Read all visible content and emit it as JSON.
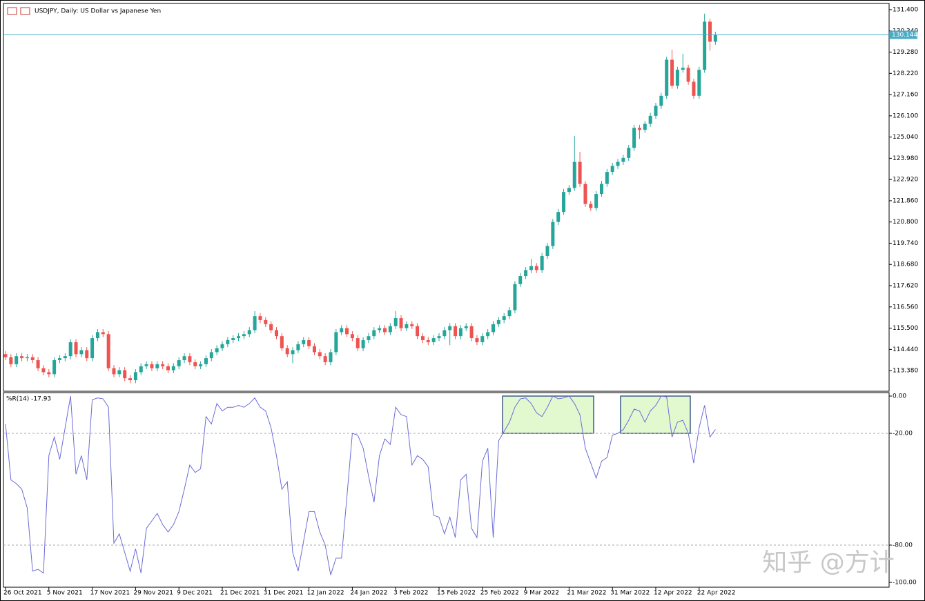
{
  "chart_data": {
    "type": "candlestick",
    "title": "USDJPY, Daily: US Dollar vs Japanese Yen",
    "up_color": "#26a69a",
    "down_color": "#ef5350",
    "categories": [
      "26 Oct 2021",
      null,
      null,
      null,
      null,
      null,
      null,
      null,
      "5 Nov 2021",
      null,
      null,
      null,
      null,
      null,
      null,
      null,
      "17 Nov 2021",
      null,
      null,
      null,
      null,
      null,
      null,
      null,
      "29 Nov 2021",
      null,
      null,
      null,
      null,
      null,
      null,
      null,
      "9 Dec 2021",
      null,
      null,
      null,
      null,
      null,
      null,
      null,
      "21 Dec 2021",
      null,
      null,
      null,
      null,
      null,
      null,
      null,
      "31 Dec 2021",
      null,
      null,
      null,
      null,
      null,
      null,
      null,
      "12 Jan 2022",
      null,
      null,
      null,
      null,
      null,
      null,
      null,
      "24 Jan 2022",
      null,
      null,
      null,
      null,
      null,
      null,
      null,
      "3 Feb 2022",
      null,
      null,
      null,
      null,
      null,
      null,
      null,
      "15 Feb 2022",
      null,
      null,
      null,
      null,
      null,
      null,
      null,
      "25 Feb 2022",
      null,
      null,
      null,
      null,
      null,
      null,
      null,
      "9 Mar 2022",
      null,
      null,
      null,
      null,
      null,
      null,
      null,
      "21 Mar 2022",
      null,
      null,
      null,
      null,
      null,
      null,
      null,
      "31 Mar 2022",
      null,
      null,
      null,
      null,
      null,
      null,
      null,
      "12 Apr 2022",
      null,
      null,
      null,
      null,
      null,
      null,
      null,
      "22 Apr 2022",
      null,
      null,
      null
    ],
    "ohlc": [
      [
        114.2,
        114.35,
        113.9,
        114.05
      ],
      [
        114.05,
        114.2,
        113.55,
        113.7
      ],
      [
        113.7,
        114.25,
        113.55,
        114.1
      ],
      [
        114.1,
        114.25,
        113.85,
        114.0
      ],
      [
        114.0,
        114.2,
        113.85,
        114.05
      ],
      [
        114.05,
        114.2,
        113.75,
        113.9
      ],
      [
        113.9,
        114.05,
        113.35,
        113.5
      ],
      [
        113.5,
        113.65,
        113.15,
        113.3
      ],
      [
        113.3,
        113.45,
        113.05,
        113.2
      ],
      [
        113.2,
        114.05,
        113.05,
        113.9
      ],
      [
        113.9,
        114.15,
        113.75,
        114.0
      ],
      [
        114.0,
        114.25,
        113.85,
        114.1
      ],
      [
        114.1,
        114.95,
        113.95,
        114.8
      ],
      [
        114.8,
        114.95,
        114.05,
        114.2
      ],
      [
        114.2,
        114.55,
        114.05,
        114.4
      ],
      [
        114.4,
        114.55,
        113.85,
        114.0
      ],
      [
        114.0,
        115.15,
        113.85,
        115.0
      ],
      [
        115.0,
        115.45,
        114.85,
        115.3
      ],
      [
        115.3,
        115.45,
        115.05,
        115.2
      ],
      [
        115.2,
        115.35,
        113.35,
        113.5
      ],
      [
        113.5,
        113.65,
        113.05,
        113.2
      ],
      [
        113.2,
        113.55,
        113.05,
        113.4
      ],
      [
        113.4,
        113.55,
        112.85,
        113.0
      ],
      [
        113.0,
        113.15,
        112.75,
        112.9
      ],
      [
        112.9,
        113.45,
        112.75,
        113.3
      ],
      [
        113.3,
        113.75,
        113.15,
        113.6
      ],
      [
        113.6,
        113.85,
        113.45,
        113.7
      ],
      [
        113.7,
        113.85,
        113.35,
        113.5
      ],
      [
        113.5,
        113.85,
        113.35,
        113.7
      ],
      [
        113.7,
        113.85,
        113.45,
        113.6
      ],
      [
        113.6,
        113.75,
        113.25,
        113.4
      ],
      [
        113.4,
        113.75,
        113.25,
        113.6
      ],
      [
        113.6,
        114.05,
        113.45,
        113.9
      ],
      [
        113.9,
        114.25,
        113.75,
        114.1
      ],
      [
        114.1,
        114.25,
        113.65,
        113.8
      ],
      [
        113.8,
        113.95,
        113.45,
        113.6
      ],
      [
        113.6,
        113.85,
        113.45,
        113.7
      ],
      [
        113.7,
        114.15,
        113.55,
        114.0
      ],
      [
        114.0,
        114.45,
        113.85,
        114.3
      ],
      [
        114.3,
        114.65,
        114.15,
        114.5
      ],
      [
        114.5,
        114.85,
        114.35,
        114.7
      ],
      [
        114.7,
        115.05,
        114.55,
        114.9
      ],
      [
        114.9,
        115.15,
        114.75,
        115.0
      ],
      [
        115.0,
        115.25,
        114.85,
        115.1
      ],
      [
        115.1,
        115.35,
        114.95,
        115.2
      ],
      [
        115.2,
        115.55,
        115.05,
        115.4
      ],
      [
        115.4,
        116.35,
        115.25,
        116.1
      ],
      [
        116.1,
        116.25,
        115.75,
        115.9
      ],
      [
        115.9,
        116.05,
        115.55,
        115.7
      ],
      [
        115.7,
        115.85,
        115.25,
        115.4
      ],
      [
        115.4,
        115.55,
        114.95,
        115.1
      ],
      [
        115.1,
        115.25,
        114.35,
        114.5
      ],
      [
        114.5,
        114.65,
        114.05,
        114.2
      ],
      [
        114.2,
        114.55,
        113.75,
        114.4
      ],
      [
        114.4,
        114.85,
        114.25,
        114.7
      ],
      [
        114.7,
        115.05,
        114.55,
        114.9
      ],
      [
        114.9,
        115.05,
        114.45,
        114.6
      ],
      [
        114.6,
        114.75,
        114.15,
        114.3
      ],
      [
        114.3,
        114.45,
        113.95,
        114.1
      ],
      [
        114.1,
        114.25,
        113.65,
        113.8
      ],
      [
        113.8,
        114.45,
        113.65,
        114.3
      ],
      [
        114.3,
        115.45,
        114.15,
        115.3
      ],
      [
        115.3,
        115.65,
        115.15,
        115.5
      ],
      [
        115.5,
        115.65,
        115.05,
        115.2
      ],
      [
        115.2,
        115.35,
        114.85,
        115.0
      ],
      [
        115.0,
        115.15,
        114.35,
        114.5
      ],
      [
        114.5,
        115.05,
        114.35,
        114.9
      ],
      [
        114.9,
        115.25,
        114.75,
        115.1
      ],
      [
        115.1,
        115.55,
        114.95,
        115.4
      ],
      [
        115.4,
        115.65,
        115.25,
        115.5
      ],
      [
        115.5,
        115.65,
        115.15,
        115.3
      ],
      [
        115.3,
        115.75,
        115.15,
        115.6
      ],
      [
        115.6,
        116.35,
        115.45,
        116.0
      ],
      [
        116.0,
        116.15,
        115.35,
        115.5
      ],
      [
        115.5,
        115.85,
        115.35,
        115.7
      ],
      [
        115.7,
        115.85,
        115.45,
        115.6
      ],
      [
        115.6,
        115.75,
        114.95,
        115.1
      ],
      [
        115.1,
        115.25,
        114.75,
        114.9
      ],
      [
        114.9,
        115.05,
        114.65,
        114.8
      ],
      [
        114.8,
        115.15,
        114.65,
        115.0
      ],
      [
        115.0,
        115.25,
        114.85,
        115.1
      ],
      [
        115.1,
        115.55,
        114.95,
        115.4
      ],
      [
        115.4,
        115.75,
        114.65,
        115.6
      ],
      [
        115.6,
        115.75,
        114.95,
        115.1
      ],
      [
        115.1,
        115.65,
        114.95,
        115.5
      ],
      [
        115.5,
        115.75,
        115.35,
        115.6
      ],
      [
        115.6,
        115.75,
        114.85,
        115.0
      ],
      [
        115.0,
        115.15,
        114.65,
        114.8
      ],
      [
        114.8,
        115.25,
        114.65,
        115.1
      ],
      [
        115.1,
        115.45,
        114.95,
        115.3
      ],
      [
        115.3,
        115.85,
        115.15,
        115.7
      ],
      [
        115.7,
        116.05,
        115.55,
        115.9
      ],
      [
        115.9,
        116.25,
        115.75,
        116.1
      ],
      [
        116.1,
        116.55,
        115.95,
        116.4
      ],
      [
        116.4,
        117.85,
        116.25,
        117.7
      ],
      [
        117.7,
        118.25,
        117.55,
        118.1
      ],
      [
        118.1,
        118.55,
        117.95,
        118.4
      ],
      [
        118.4,
        118.95,
        118.25,
        118.6
      ],
      [
        118.6,
        118.75,
        118.25,
        118.4
      ],
      [
        118.4,
        119.25,
        118.25,
        119.1
      ],
      [
        119.1,
        119.75,
        118.95,
        119.6
      ],
      [
        119.6,
        120.95,
        119.45,
        120.8
      ],
      [
        120.8,
        121.45,
        120.65,
        121.3
      ],
      [
        121.3,
        122.45,
        121.15,
        122.3
      ],
      [
        122.3,
        122.65,
        122.15,
        122.5
      ],
      [
        122.5,
        125.1,
        122.35,
        123.8
      ],
      [
        123.8,
        124.3,
        122.55,
        122.7
      ],
      [
        122.7,
        122.85,
        121.55,
        121.7
      ],
      [
        121.7,
        121.85,
        121.35,
        121.5
      ],
      [
        121.5,
        122.35,
        121.35,
        122.2
      ],
      [
        122.2,
        122.85,
        122.05,
        122.7
      ],
      [
        122.7,
        123.45,
        122.55,
        123.3
      ],
      [
        123.3,
        123.75,
        123.15,
        123.6
      ],
      [
        123.6,
        123.95,
        123.45,
        123.8
      ],
      [
        123.8,
        124.15,
        123.65,
        124.0
      ],
      [
        124.0,
        124.65,
        123.85,
        124.5
      ],
      [
        124.5,
        125.65,
        124.35,
        125.5
      ],
      [
        125.5,
        125.65,
        124.95,
        125.4
      ],
      [
        125.4,
        125.85,
        125.25,
        125.7
      ],
      [
        125.7,
        126.25,
        125.55,
        126.1
      ],
      [
        126.1,
        126.75,
        125.95,
        126.6
      ],
      [
        126.6,
        127.25,
        126.45,
        127.1
      ],
      [
        127.1,
        129.05,
        126.95,
        128.9
      ],
      [
        128.9,
        129.4,
        127.45,
        127.6
      ],
      [
        127.6,
        128.55,
        127.45,
        128.4
      ],
      [
        128.4,
        129.2,
        128.25,
        128.5
      ],
      [
        128.5,
        128.65,
        127.65,
        127.8
      ],
      [
        127.8,
        127.95,
        126.95,
        127.1
      ],
      [
        127.1,
        128.55,
        126.95,
        128.4
      ],
      [
        128.4,
        131.2,
        128.25,
        130.8
      ],
      [
        130.8,
        130.95,
        129.35,
        129.8
      ],
      [
        129.8,
        130.3,
        129.65,
        130.144
      ]
    ],
    "ylim": [
      112.35,
      131.71
    ],
    "yticks": [
      {
        "value": 131.4,
        "label": "131.400"
      },
      {
        "value": 130.34,
        "label": "130.340"
      },
      {
        "value": 129.28,
        "label": "129.280"
      },
      {
        "value": 128.22,
        "label": "128.220"
      },
      {
        "value": 127.16,
        "label": "127.160"
      },
      {
        "value": 126.1,
        "label": "126.100"
      },
      {
        "value": 125.04,
        "label": "125.040"
      },
      {
        "value": 123.98,
        "label": "123.980"
      },
      {
        "value": 122.92,
        "label": "122.920"
      },
      {
        "value": 121.86,
        "label": "121.860"
      },
      {
        "value": 120.8,
        "label": "120.800"
      },
      {
        "value": 119.74,
        "label": "119.740"
      },
      {
        "value": 118.68,
        "label": "118.680"
      },
      {
        "value": 117.62,
        "label": "117.620"
      },
      {
        "value": 116.56,
        "label": "116.560"
      },
      {
        "value": 115.5,
        "label": "115.500"
      },
      {
        "value": 114.44,
        "label": "114.440"
      },
      {
        "value": 113.38,
        "label": "113.380"
      }
    ],
    "price_line": {
      "value": 130.144,
      "color": "#4bacc6"
    },
    "indicator": {
      "type": "line",
      "label": "%R(14) -17.93",
      "color": "#6b6bd6",
      "values": [
        -15,
        -45,
        -47,
        -50,
        -60,
        -94,
        -93,
        -95,
        -32,
        -22,
        -34,
        -17,
        0,
        -42,
        -32,
        -45,
        -2,
        -1,
        -1.5,
        -6,
        -79,
        -74,
        -84,
        -94,
        -82,
        -95,
        -71,
        -67,
        -63,
        -69,
        -73,
        -69,
        -62,
        -50,
        -37,
        -41,
        -39,
        -11,
        -15,
        -4,
        -8,
        -6,
        -6,
        -5,
        -6,
        -4,
        -1,
        -6,
        -8,
        -17,
        -32,
        -50,
        -46,
        -84,
        -94,
        -78,
        -62,
        -62,
        -73,
        -80,
        -96,
        -87,
        -87,
        -54,
        -20,
        -21,
        -28,
        -43,
        -57,
        -32,
        -23,
        -26,
        -6,
        -10,
        -11,
        -37,
        -32,
        -34,
        -38,
        -64,
        -65,
        -74,
        -65,
        -76,
        -45,
        -42,
        -71,
        -76,
        -35,
        -28,
        -76,
        -24,
        -19,
        -14,
        -6,
        -1.5,
        -1,
        -4,
        -9,
        -11,
        -6,
        0,
        -1.5,
        -1,
        0,
        -4,
        -10,
        -28,
        -36,
        -44,
        -35,
        -33,
        -21,
        -20,
        -18,
        -13,
        -7,
        -8,
        -14,
        -8,
        -5,
        0,
        -0.4,
        -22,
        -14,
        -13,
        -20,
        -36,
        -17,
        -5,
        -22,
        -17.93
      ],
      "ylim": [
        -102.6,
        1.85
      ],
      "yticks": [
        {
          "value": 0,
          "label": "0.00"
        },
        {
          "value": -20,
          "label": "-20.00"
        },
        {
          "value": -80,
          "label": "-80.00"
        },
        {
          "value": -100,
          "label": "-100.00"
        }
      ],
      "levels": [
        -20,
        -80
      ]
    },
    "watermark": "知乎 @方计"
  }
}
